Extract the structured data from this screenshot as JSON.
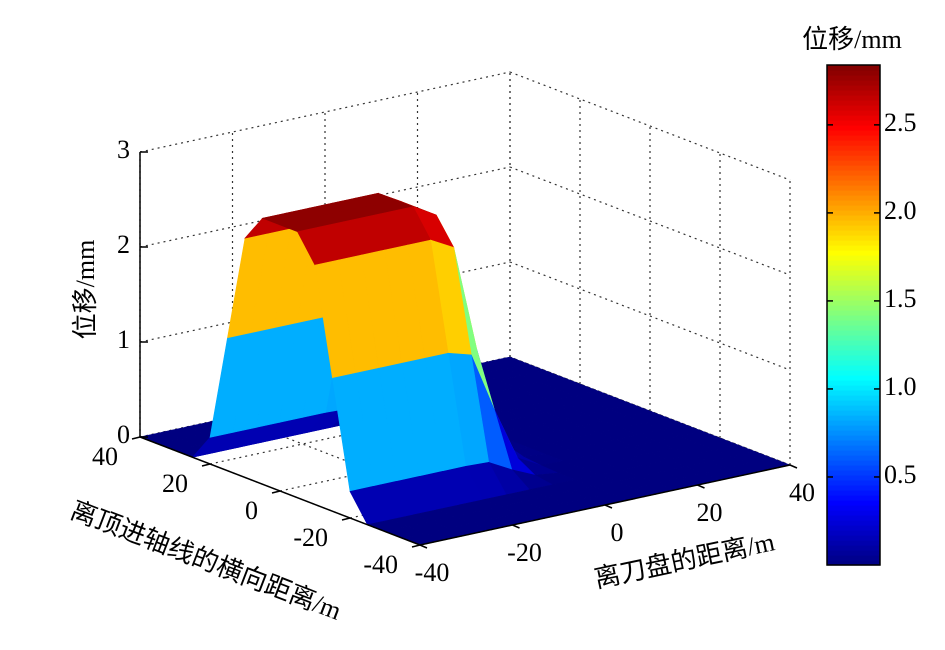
{
  "chart_data": {
    "type": "surface",
    "xlabel": "离刀盘的距离/m",
    "ylabel": "离顶进轴线的横向距离/m",
    "zlabel": "位移/mm",
    "colorbar_label": "位移/mm",
    "colormap": "jet",
    "grid": true,
    "x": [
      -40,
      -35,
      -30,
      -25,
      -20,
      -15,
      -10,
      -5,
      0,
      5,
      10,
      15,
      20,
      25,
      30,
      35,
      40
    ],
    "y": [
      -40,
      -35,
      -30,
      -25,
      -20,
      -15,
      -10,
      -5,
      0,
      5,
      10,
      15,
      20,
      25,
      30,
      35,
      40
    ],
    "z": [
      [
        0,
        0,
        0,
        0,
        0,
        0,
        0,
        0,
        0,
        0,
        0,
        0,
        0,
        0,
        0,
        0,
        0
      ],
      [
        0,
        0,
        0,
        0,
        0,
        0,
        0,
        0,
        0,
        0,
        0,
        0,
        0,
        0,
        0,
        0,
        0
      ],
      [
        0,
        0,
        0,
        0,
        0,
        0,
        0,
        0,
        0,
        0,
        0,
        0,
        0,
        0,
        0,
        0,
        0
      ],
      [
        0,
        0,
        0,
        0,
        0,
        0,
        0,
        0,
        0,
        0,
        0,
        0,
        0,
        0,
        0,
        0,
        0
      ],
      [
        0.28,
        0.28,
        0.28,
        0.28,
        0.28,
        0.28,
        0.27,
        0.14,
        0.03,
        0,
        0,
        0,
        0,
        0,
        0,
        0,
        0
      ],
      [
        1.4,
        1.4,
        1.4,
        1.4,
        1.4,
        1.4,
        1.33,
        0.7,
        0.14,
        0.01,
        0,
        0,
        0,
        0,
        0,
        0,
        0
      ],
      [
        2.52,
        2.52,
        2.52,
        2.52,
        2.52,
        2.52,
        2.39,
        1.26,
        0.25,
        0.03,
        0,
        0,
        0,
        0,
        0,
        0,
        0
      ],
      [
        2.8,
        2.8,
        2.8,
        2.8,
        2.8,
        2.8,
        2.66,
        1.4,
        0.28,
        0.03,
        0,
        0,
        0,
        0,
        0,
        0,
        0
      ],
      [
        2.8,
        2.8,
        2.8,
        2.8,
        2.8,
        2.8,
        2.66,
        1.4,
        0.28,
        0.03,
        0,
        0,
        0,
        0,
        0,
        0,
        0
      ],
      [
        2.8,
        2.8,
        2.8,
        2.8,
        2.8,
        2.8,
        2.66,
        1.4,
        0.28,
        0.03,
        0,
        0,
        0,
        0,
        0,
        0,
        0
      ],
      [
        2.52,
        2.52,
        2.52,
        2.52,
        2.52,
        2.52,
        2.39,
        1.26,
        0.25,
        0.03,
        0,
        0,
        0,
        0,
        0,
        0,
        0
      ],
      [
        1.4,
        1.4,
        1.4,
        1.4,
        1.4,
        1.4,
        1.33,
        0.7,
        0.14,
        0.01,
        0,
        0,
        0,
        0,
        0,
        0,
        0
      ],
      [
        0.28,
        0.28,
        0.28,
        0.28,
        0.28,
        0.28,
        0.27,
        0.14,
        0.03,
        0,
        0,
        0,
        0,
        0,
        0,
        0,
        0
      ],
      [
        0,
        0,
        0,
        0,
        0,
        0,
        0,
        0,
        0,
        0,
        0,
        0,
        0,
        0,
        0,
        0,
        0
      ],
      [
        0,
        0,
        0,
        0,
        0,
        0,
        0,
        0,
        0,
        0,
        0,
        0,
        0,
        0,
        0,
        0,
        0
      ],
      [
        0,
        0,
        0,
        0,
        0,
        0,
        0,
        0,
        0,
        0,
        0,
        0,
        0,
        0,
        0,
        0,
        0
      ],
      [
        0,
        0,
        0,
        0,
        0,
        0,
        0,
        0,
        0,
        0,
        0,
        0,
        0,
        0,
        0,
        0,
        0
      ]
    ],
    "xlim": [
      -40,
      40
    ],
    "ylim": [
      -40,
      40
    ],
    "zlim": [
      0,
      3
    ],
    "xticks": [
      -40,
      -20,
      0,
      20,
      40
    ],
    "yticks": [
      -40,
      -20,
      0,
      20,
      40
    ],
    "zticks": [
      0,
      1,
      2,
      3
    ],
    "clim": [
      0,
      2.84
    ],
    "cticks": [
      0.5,
      {
        "value": 1,
        "label": "1.0"
      },
      1.5,
      {
        "value": 2,
        "label": "2.0"
      },
      2.5
    ]
  }
}
